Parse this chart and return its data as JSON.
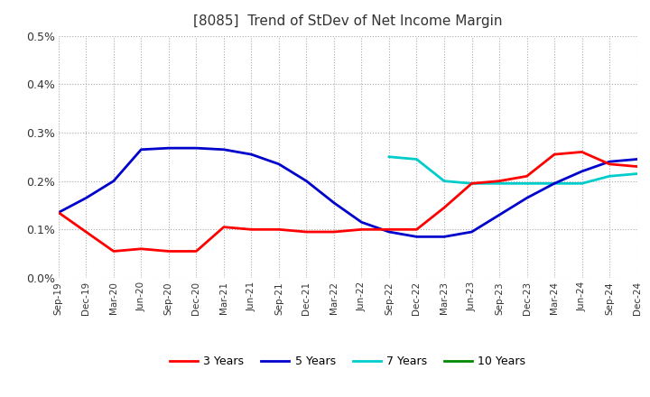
{
  "title": "[8085]  Trend of StDev of Net Income Margin",
  "ylim": [
    0.0,
    0.005
  ],
  "yticks": [
    0.0,
    0.001,
    0.002,
    0.003,
    0.004,
    0.005
  ],
  "ytick_labels": [
    "0.0%",
    "0.1%",
    "0.2%",
    "0.3%",
    "0.4%",
    "0.5%"
  ],
  "x_labels": [
    "Sep-19",
    "Dec-19",
    "Mar-20",
    "Jun-20",
    "Sep-20",
    "Dec-20",
    "Mar-21",
    "Jun-21",
    "Sep-21",
    "Dec-21",
    "Mar-22",
    "Jun-22",
    "Sep-22",
    "Dec-22",
    "Mar-23",
    "Jun-23",
    "Sep-23",
    "Dec-23",
    "Mar-24",
    "Jun-24",
    "Sep-24",
    "Dec-24"
  ],
  "series_3y_color": "#FF0000",
  "series_5y_color": "#0000CC",
  "series_7y_color": "#00CCCC",
  "series_10y_color": "#008800",
  "series_3y": [
    0.00135,
    0.00095,
    0.00055,
    0.0006,
    0.00055,
    0.00055,
    0.00105,
    0.001,
    0.001,
    0.00095,
    0.00095,
    0.001,
    0.001,
    0.001,
    0.00145,
    0.00195,
    0.002,
    0.0021,
    0.00255,
    0.0026,
    0.00235,
    0.0023
  ],
  "series_5y": [
    0.00135,
    0.00165,
    0.002,
    0.00265,
    0.00268,
    0.00268,
    0.00265,
    0.00255,
    0.00235,
    0.002,
    0.00155,
    0.00115,
    0.00095,
    0.00085,
    0.00085,
    0.00095,
    0.0013,
    0.00165,
    0.00195,
    0.0022,
    0.0024,
    0.00245
  ],
  "series_7y": [
    null,
    null,
    null,
    null,
    null,
    null,
    null,
    null,
    null,
    null,
    null,
    null,
    0.0025,
    0.00245,
    0.002,
    0.00195,
    0.00195,
    0.00195,
    0.00195,
    0.00195,
    0.0021,
    0.00215
  ],
  "series_10y": [
    null,
    null,
    null,
    null,
    null,
    null,
    null,
    null,
    null,
    null,
    null,
    null,
    null,
    null,
    null,
    null,
    null,
    null,
    null,
    null,
    null,
    null
  ],
  "background_color": "#FFFFFF",
  "grid_color": "#AAAAAA"
}
